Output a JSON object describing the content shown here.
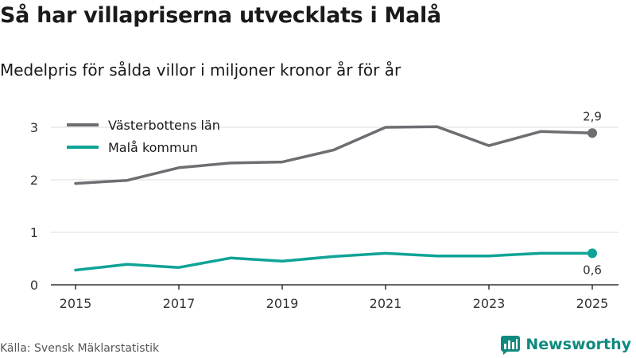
{
  "header": {
    "title": "Så har villapriserna utvecklats i Malå",
    "subtitle": "Medelpris för sålda villor i miljoner kronor år för år"
  },
  "footer": {
    "source": "Källa: Svensk Mäklarstatistik",
    "brand": "Newsworthy"
  },
  "colors": {
    "county": "#6d6d72",
    "municipality": "#0fa396",
    "grid": "#dddddd",
    "axis": "#333333",
    "brand": "#0f8a80"
  },
  "chart_data": {
    "type": "line",
    "title": "Så har villapriserna utvecklats i Malå",
    "subtitle": "Medelpris för sålda villor i miljoner kronor år för år",
    "xlabel": "",
    "ylabel": "",
    "x": [
      2015,
      2016,
      2017,
      2018,
      2019,
      2020,
      2021,
      2022,
      2023,
      2024,
      2025
    ],
    "xticks": [
      "2015",
      "2017",
      "2019",
      "2021",
      "2023",
      "2025"
    ],
    "yticks": [
      "0",
      "1",
      "2",
      "3"
    ],
    "ylim": [
      0,
      3
    ],
    "xlim": [
      2015,
      2025
    ],
    "grid": true,
    "legend_position": "top-left",
    "series": [
      {
        "name": "Västerbottens län",
        "color": "#6d6d72",
        "values": [
          1.93,
          1.99,
          2.23,
          2.32,
          2.34,
          2.57,
          3.0,
          3.01,
          2.65,
          2.92,
          2.89
        ],
        "end_label": "2,9",
        "end_label_position": "above"
      },
      {
        "name": "Malå kommun",
        "color": "#0fa396",
        "values": [
          0.28,
          0.39,
          0.33,
          0.51,
          0.45,
          0.54,
          0.6,
          0.55,
          0.55,
          0.6,
          0.6
        ],
        "end_label": "0,6",
        "end_label_position": "below"
      }
    ]
  }
}
